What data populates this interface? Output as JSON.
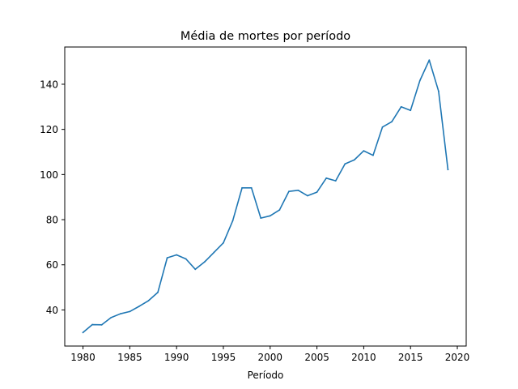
{
  "chart_data": {
    "type": "line",
    "title": "Média de mortes por período",
    "xlabel": "Período",
    "ylabel": "",
    "xlim": [
      1978.05,
      2020.95
    ],
    "ylim": [
      24.0,
      156.5
    ],
    "xticks": [
      1980,
      1985,
      1990,
      1995,
      2000,
      2005,
      2010,
      2015,
      2020
    ],
    "yticks": [
      40,
      60,
      80,
      100,
      120,
      140
    ],
    "grid": false,
    "legend": "none",
    "line_color": "#1f77b4",
    "series": [
      {
        "x": [
          1980,
          1981,
          1982,
          1983,
          1984,
          1985,
          1986,
          1987,
          1988,
          1989,
          1990,
          1991,
          1992,
          1993,
          1994,
          1995,
          1996,
          1997,
          1998,
          1999,
          2000,
          2001,
          2002,
          2003,
          2004,
          2005,
          2006,
          2007,
          2008,
          2009,
          2010,
          2011,
          2012,
          2013,
          2014,
          2015,
          2016,
          2017,
          2018,
          2019
        ],
        "values": [
          30.0,
          33.5,
          33.4,
          36.6,
          38.3,
          39.3,
          41.6,
          44.1,
          47.8,
          63.1,
          64.4,
          62.6,
          58.0,
          61.3,
          65.5,
          69.7,
          79.5,
          94.1,
          94.1,
          80.7,
          81.7,
          84.3,
          92.5,
          93.0,
          90.6,
          92.2,
          98.4,
          97.2,
          104.7,
          106.5,
          110.5,
          108.5,
          121.0,
          123.4,
          130.0,
          128.4,
          141.6,
          150.7,
          136.9,
          102.2
        ]
      }
    ]
  }
}
